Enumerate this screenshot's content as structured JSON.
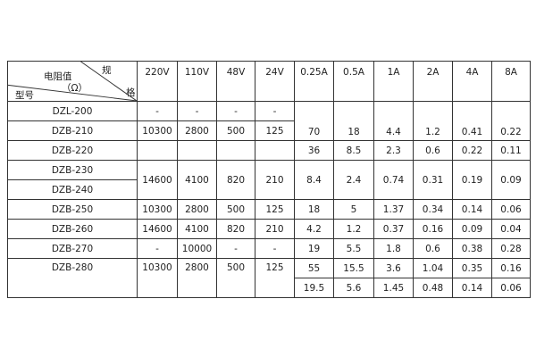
{
  "header": {
    "corner": {
      "spec_part1": "规",
      "spec_part2": "格",
      "resistance": "电阻值",
      "unit": "（Ω）",
      "model": "型号"
    },
    "columns": [
      "220V",
      "110V",
      "48V",
      "24V",
      "0.25A",
      "0.5A",
      "1A",
      "2A",
      "4A",
      "8A"
    ]
  },
  "models": [
    "DZL-200",
    "DZB-210",
    "DZB-220",
    "DZB-230",
    "DZB-240",
    "DZB-250",
    "DZB-260",
    "DZB-270",
    "DZB-280"
  ],
  "voltage_rows": [
    {
      "rows": "DZL-200",
      "values": [
        "-",
        "-",
        "-",
        "-"
      ]
    },
    {
      "rows": "DZB-210",
      "values": [
        "10300",
        "2800",
        "500",
        "125"
      ]
    },
    {
      "rows": "DZB-220",
      "values": [
        "",
        "",
        "",
        ""
      ]
    },
    {
      "rows": "DZB-230 / DZB-240",
      "values": [
        "14600",
        "4100",
        "820",
        "210"
      ]
    },
    {
      "rows": "DZB-250",
      "values": [
        "10300",
        "2800",
        "500",
        "125"
      ]
    },
    {
      "rows": "DZB-260",
      "values": [
        "14600",
        "4100",
        "820",
        "210"
      ]
    },
    {
      "rows": "DZB-270",
      "values": [
        "-",
        "10000",
        "-",
        "-"
      ]
    },
    {
      "rows": "DZB-280",
      "values": [
        "10300",
        "2800",
        "500",
        "125"
      ]
    }
  ],
  "current_rows": [
    [
      "70",
      "18",
      "4.4",
      "1.2",
      "0.41",
      "0.22"
    ],
    [
      "36",
      "8.5",
      "2.3",
      "0.6",
      "0.22",
      "0.11"
    ],
    [
      "8.4",
      "2.4",
      "0.74",
      "0.31",
      "0.19",
      "0.09"
    ],
    [
      "18",
      "5",
      "1.37",
      "0.34",
      "0.14",
      "0.06"
    ],
    [
      "4.2",
      "1.2",
      "0.37",
      "0.16",
      "0.09",
      "0.04"
    ],
    [
      "19",
      "5.5",
      "1.8",
      "0.6",
      "0.38",
      "0.28"
    ],
    [
      "55",
      "15.5",
      "3.6",
      "1.04",
      "0.35",
      "0.16"
    ],
    [
      "19.5",
      "5.6",
      "1.45",
      "0.48",
      "0.14",
      "0.06"
    ]
  ]
}
